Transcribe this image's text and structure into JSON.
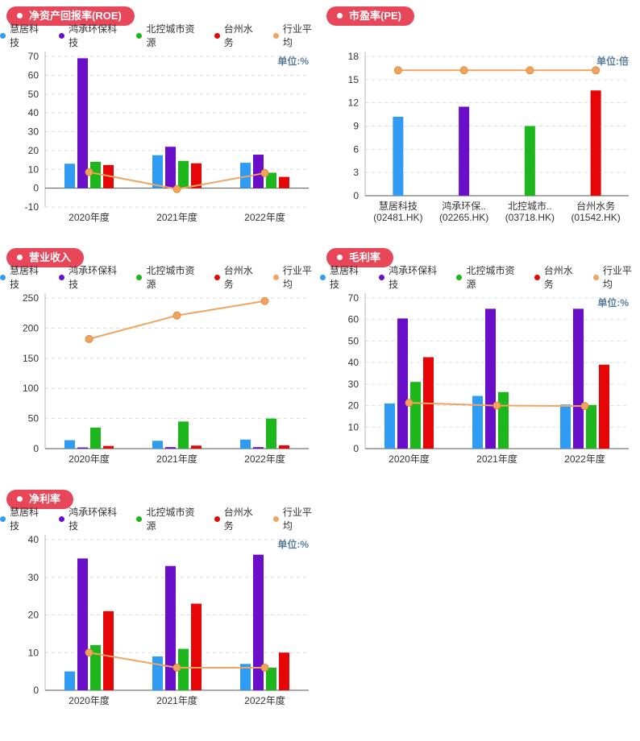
{
  "colors": {
    "blue": "#2f9bf3",
    "purple": "#690fca",
    "green": "#1db71d",
    "red": "#e60606",
    "orange": "#f1a45f",
    "orange_stroke": "#e08b3e",
    "badge": "#e8475a",
    "unit_text": "#5b7e9c",
    "grid": "#dddddd",
    "axis": "#555555",
    "yaxis": "#b8b8b8",
    "tick_text": "#333333"
  },
  "chart_data": [
    {
      "id": "roe",
      "type": "bar",
      "title": "净资产回报率(ROE)",
      "unit": "单位:%",
      "show_legend": true,
      "categories": [
        "2020年度",
        "2021年度",
        "2022年度"
      ],
      "ylim": [
        -10,
        70
      ],
      "ystep": 10,
      "series": [
        {
          "name": "慧居科技",
          "type": "bar",
          "color": "blue",
          "values": [
            13,
            17.5,
            13.5
          ]
        },
        {
          "name": "鸿承环保科技",
          "type": "bar",
          "color": "purple",
          "values": [
            69,
            22,
            17.8
          ]
        },
        {
          "name": "北控城市资源",
          "type": "bar",
          "color": "green",
          "values": [
            14,
            14.5,
            8.2
          ]
        },
        {
          "name": "台州水务",
          "type": "bar",
          "color": "red",
          "values": [
            12.3,
            13.2,
            6
          ]
        },
        {
          "name": "行业平均",
          "type": "line",
          "color": "orange",
          "values": [
            8.5,
            -0.5,
            8
          ]
        }
      ]
    },
    {
      "id": "pe",
      "type": "bar",
      "title": "市盈率(PE)",
      "unit": "单位:倍",
      "show_legend": false,
      "categories": [
        [
          "慧居科技",
          "(02481.HK)"
        ],
        [
          "鸿承环保..",
          "(02265.HK)"
        ],
        [
          "北控城市..",
          "(03718.HK)"
        ],
        [
          "台州水务",
          "(01542.HK)"
        ]
      ],
      "ylim": [
        0,
        18
      ],
      "ystep": 3,
      "bars": {
        "values": [
          10.2,
          11.5,
          9,
          13.6
        ],
        "colors": [
          "blue",
          "purple",
          "green",
          "red"
        ]
      },
      "line": {
        "name": "行业平均",
        "type": "line",
        "color": "orange",
        "values": [
          16.2,
          16.2,
          16.2,
          16.2
        ]
      }
    },
    {
      "id": "revenue",
      "type": "bar",
      "title": "营业收入",
      "unit": "",
      "show_legend": true,
      "categories": [
        "2020年度",
        "2021年度",
        "2022年度"
      ],
      "ylim": [
        0,
        250
      ],
      "ystep": 50,
      "series": [
        {
          "name": "慧居科技",
          "type": "bar",
          "color": "blue",
          "values": [
            14,
            13,
            15
          ]
        },
        {
          "name": "鸿承环保科技",
          "type": "bar",
          "color": "purple",
          "values": [
            2,
            2.5,
            2.5
          ]
        },
        {
          "name": "北控城市资源",
          "type": "bar",
          "color": "green",
          "values": [
            35,
            45,
            50
          ]
        },
        {
          "name": "台州水务",
          "type": "bar",
          "color": "red",
          "values": [
            4.5,
            5,
            5.5
          ]
        },
        {
          "name": "行业平均",
          "type": "line",
          "color": "orange",
          "values": [
            182,
            221,
            245
          ]
        }
      ]
    },
    {
      "id": "gross-margin",
      "type": "bar",
      "title": "毛利率",
      "unit": "单位:%",
      "show_legend": true,
      "categories": [
        "2020年度",
        "2021年度",
        "2022年度"
      ],
      "ylim": [
        0,
        70
      ],
      "ystep": 10,
      "series": [
        {
          "name": "慧居科技",
          "type": "bar",
          "color": "blue",
          "values": [
            21,
            24.5,
            20.5
          ]
        },
        {
          "name": "鸿承环保科技",
          "type": "bar",
          "color": "purple",
          "values": [
            60.5,
            65,
            65
          ]
        },
        {
          "name": "北控城市资源",
          "type": "bar",
          "color": "green",
          "values": [
            31,
            26.3,
            20.3
          ]
        },
        {
          "name": "台州水务",
          "type": "bar",
          "color": "red",
          "values": [
            42.5,
            null,
            39
          ]
        },
        {
          "name": "行业平均",
          "type": "line",
          "color": "orange",
          "values": [
            21.3,
            20,
            19.8
          ]
        }
      ]
    },
    {
      "id": "net-margin",
      "type": "bar",
      "title": "净利率",
      "unit": "单位:%",
      "show_legend": true,
      "categories": [
        "2020年度",
        "2021年度",
        "2022年度"
      ],
      "ylim": [
        0,
        40
      ],
      "ystep": 10,
      "series": [
        {
          "name": "慧居科技",
          "type": "bar",
          "color": "blue",
          "values": [
            5,
            9,
            7
          ]
        },
        {
          "name": "鸿承环保科技",
          "type": "bar",
          "color": "purple",
          "values": [
            35,
            33,
            36
          ]
        },
        {
          "name": "北控城市资源",
          "type": "bar",
          "color": "green",
          "values": [
            12,
            11,
            6
          ]
        },
        {
          "name": "台州水务",
          "type": "bar",
          "color": "red",
          "values": [
            21,
            23,
            10
          ]
        },
        {
          "name": "行业平均",
          "type": "line",
          "color": "orange",
          "values": [
            10,
            6,
            6
          ]
        }
      ]
    }
  ]
}
